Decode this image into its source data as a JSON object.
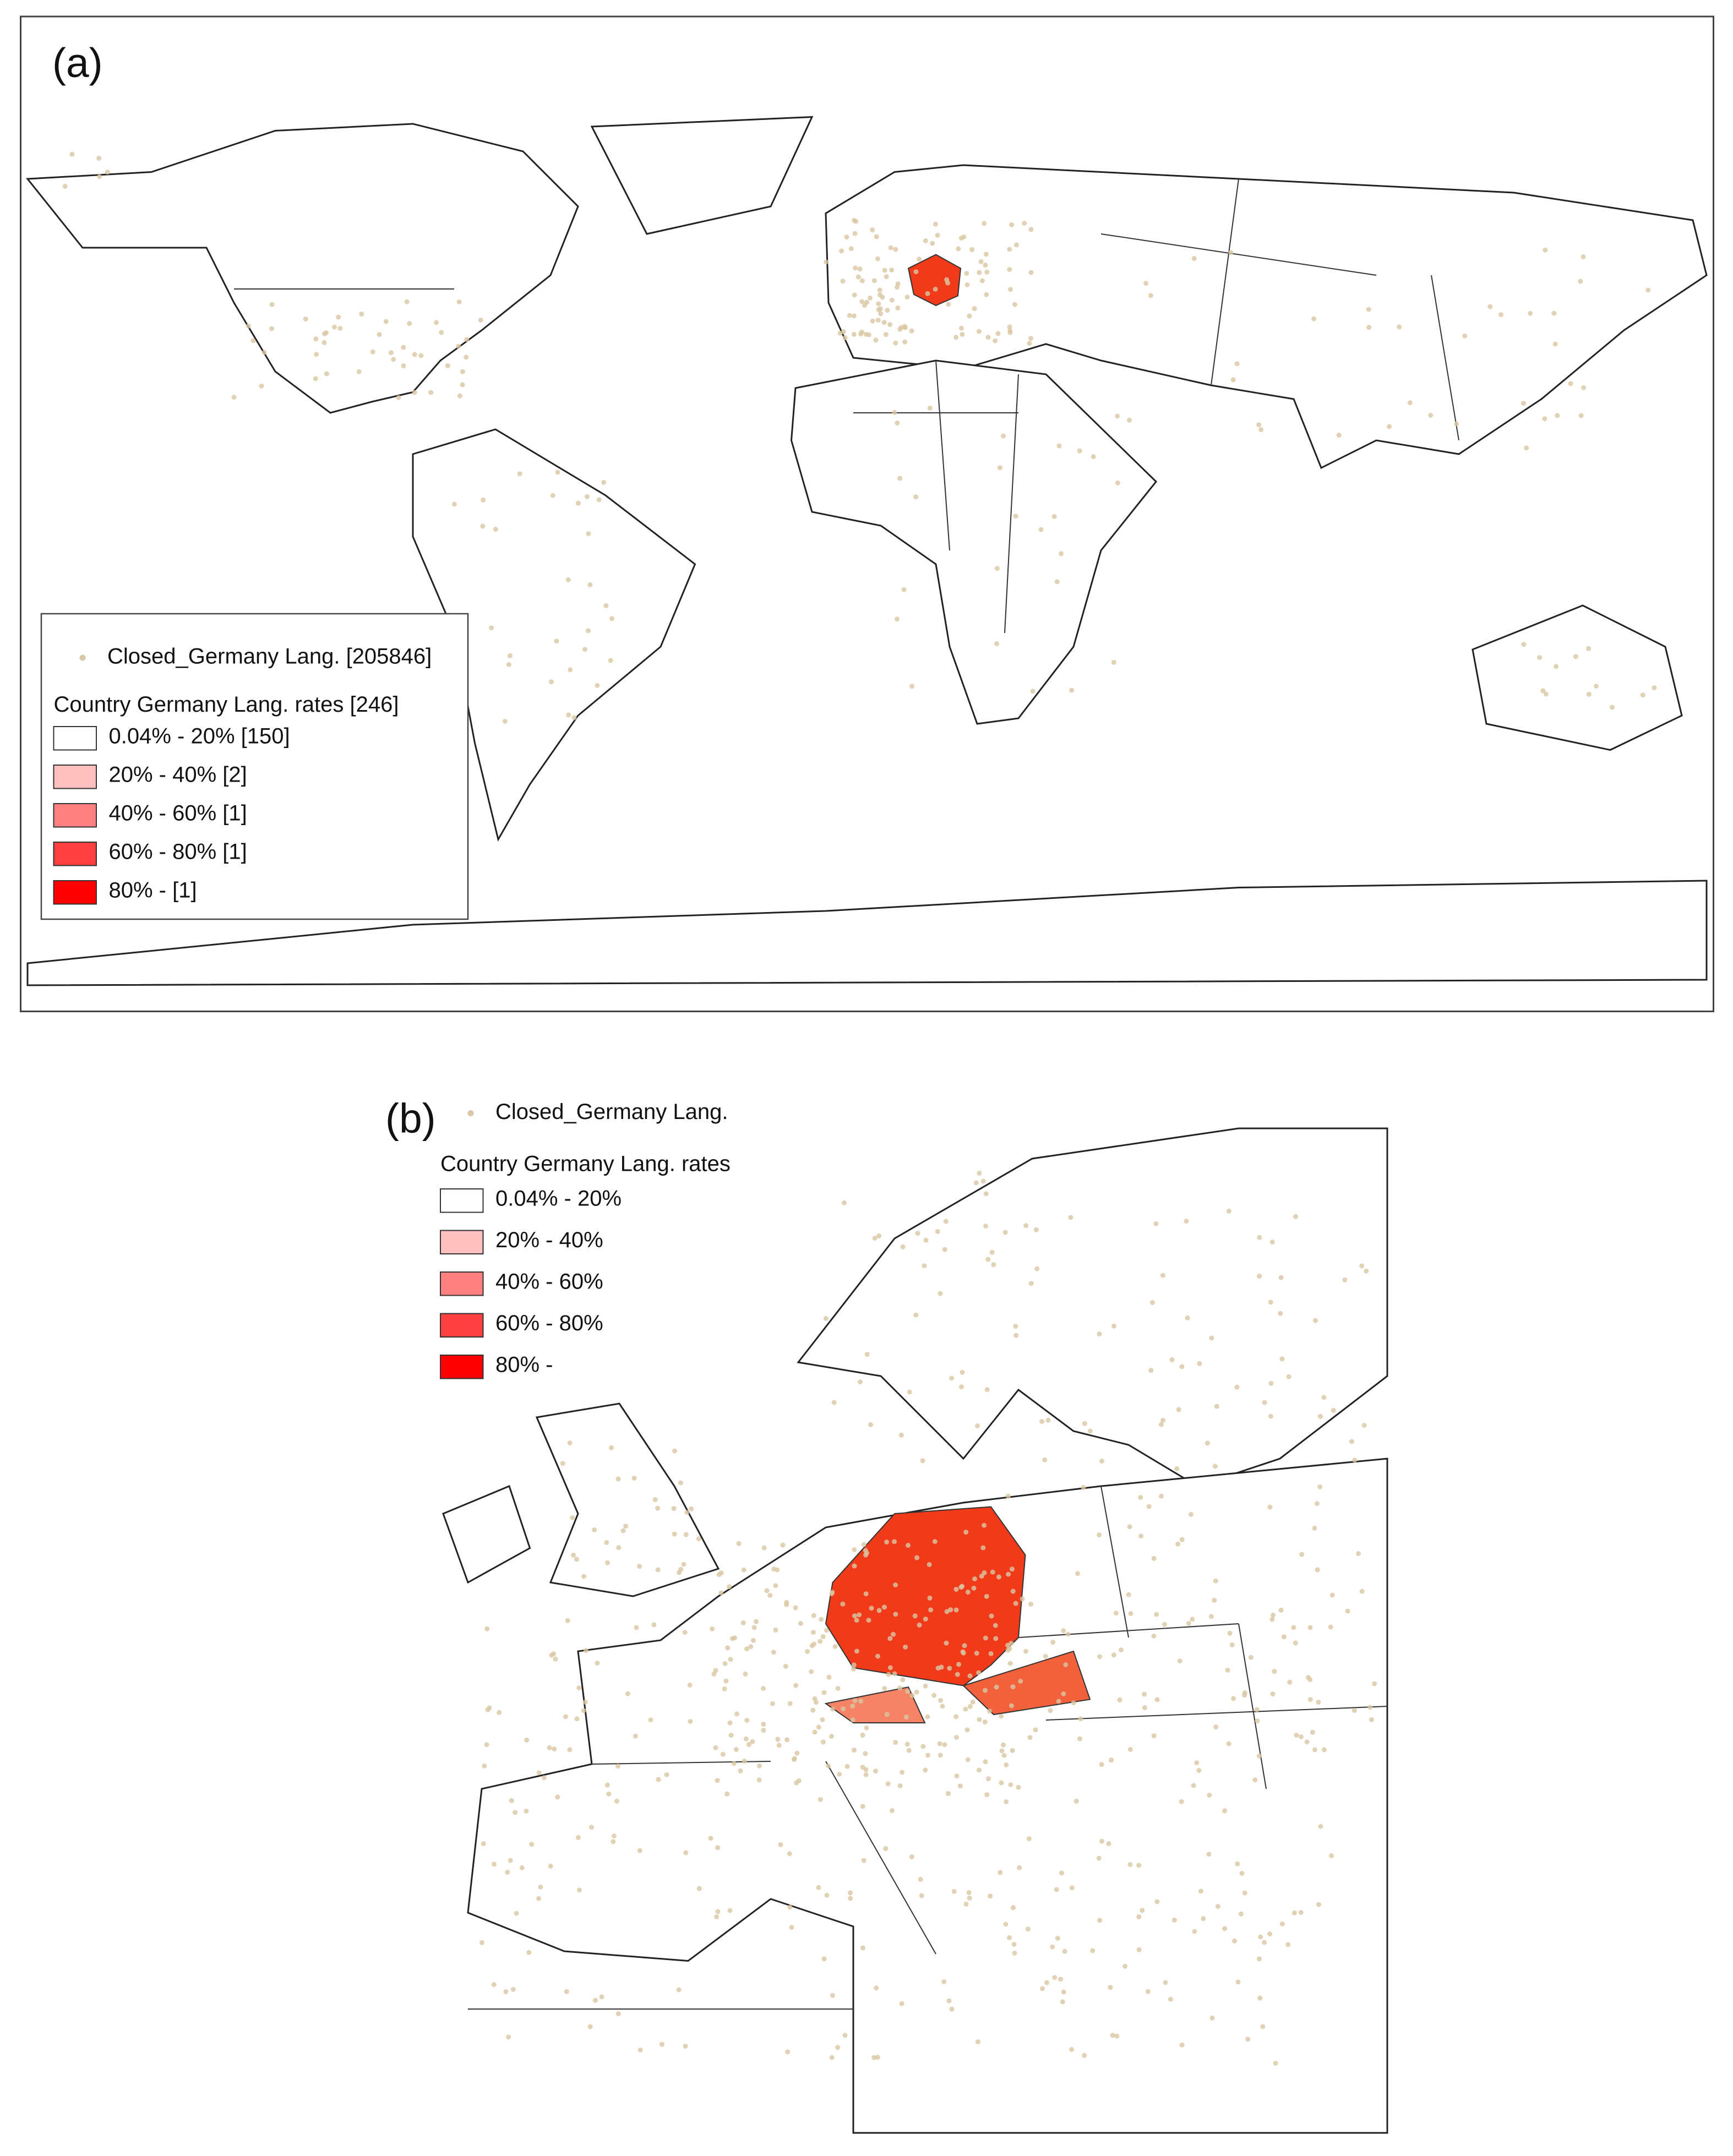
{
  "panel_a": {
    "label": "(a)",
    "legend": {
      "points_label": "Closed_Germany Lang. [205846]",
      "title": "Country Germany Lang. rates [246]",
      "classes": [
        {
          "label": "0.04% - 20%  [150]",
          "color": "#ffffff"
        },
        {
          "label": "20% - 40% [2]",
          "color": "#ffc0c0"
        },
        {
          "label": "40% - 60% [1]",
          "color": "#ff8080"
        },
        {
          "label": "60% - 80% [1]",
          "color": "#ff4040"
        },
        {
          "label": "80% - [1]",
          "color": "#ff0000"
        }
      ]
    }
  },
  "panel_b": {
    "label": "(b)",
    "legend": {
      "points_label": "Closed_Germany Lang.",
      "title": "Country Germany Lang. rates",
      "classes": [
        {
          "label": "0.04% - 20%",
          "color": "#ffffff"
        },
        {
          "label": "20% - 40%",
          "color": "#ffc0c0"
        },
        {
          "label": "40% - 60%",
          "color": "#ff8080"
        },
        {
          "label": "60% - 80%",
          "color": "#ff4040"
        },
        {
          "label": "80% -",
          "color": "#ff0000"
        }
      ]
    }
  }
}
